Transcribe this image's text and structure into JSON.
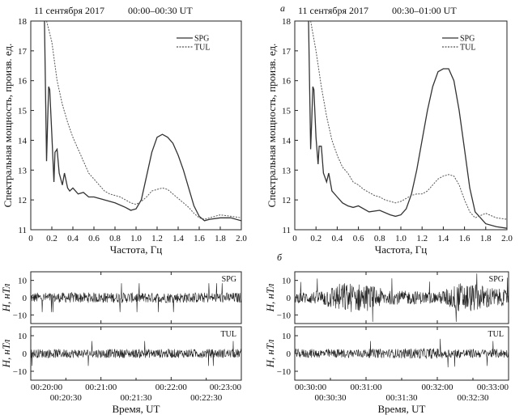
{
  "panel_labels": {
    "a": "а",
    "b": "б"
  },
  "chart_data": [
    {
      "type": "line",
      "date": "11 сентября 2017",
      "interval": "00:00–00:30 UT",
      "xlabel": "Частота, Гц",
      "ylabel": "Спектральная мощность, произв. ед.",
      "xlim": [
        0,
        2.0
      ],
      "ylim": [
        11,
        18
      ],
      "xticks": [
        "0",
        "0.2",
        "0.4",
        "0.6",
        "0.8",
        "1.0",
        "1.2",
        "1.4",
        "1.6",
        "1.8",
        "2.0"
      ],
      "yticks": [
        "11",
        "12",
        "13",
        "14",
        "15",
        "16",
        "17",
        "18"
      ],
      "legend_position": "top-right",
      "series": [
        {
          "name": "SPG",
          "style": "solid",
          "x": [
            0.13,
            0.15,
            0.16,
            0.17,
            0.18,
            0.2,
            0.22,
            0.23,
            0.25,
            0.27,
            0.3,
            0.32,
            0.35,
            0.37,
            0.4,
            0.45,
            0.5,
            0.55,
            0.6,
            0.7,
            0.8,
            0.9,
            0.95,
            1.0,
            1.05,
            1.1,
            1.15,
            1.2,
            1.25,
            1.3,
            1.35,
            1.4,
            1.45,
            1.5,
            1.55,
            1.6,
            1.65,
            1.7,
            1.8,
            1.9,
            2.0
          ],
          "y": [
            18,
            13.3,
            14.6,
            15.8,
            15.7,
            14.2,
            12.6,
            13.6,
            13.7,
            12.9,
            12.5,
            12.9,
            12.4,
            12.3,
            12.4,
            12.2,
            12.25,
            12.1,
            12.1,
            12.0,
            11.9,
            11.75,
            11.65,
            11.7,
            12.0,
            12.8,
            13.6,
            14.1,
            14.2,
            14.1,
            13.9,
            13.5,
            13.0,
            12.4,
            11.8,
            11.45,
            11.3,
            11.35,
            11.4,
            11.4,
            11.3
          ]
        },
        {
          "name": "TUL",
          "style": "dashed",
          "x": [
            0.15,
            0.2,
            0.25,
            0.3,
            0.35,
            0.4,
            0.45,
            0.5,
            0.55,
            0.6,
            0.65,
            0.7,
            0.75,
            0.8,
            0.85,
            0.9,
            0.95,
            1.0,
            1.05,
            1.1,
            1.15,
            1.2,
            1.25,
            1.3,
            1.35,
            1.4,
            1.45,
            1.5,
            1.55,
            1.6,
            1.65,
            1.7,
            1.8,
            1.9,
            2.0
          ],
          "y": [
            18,
            17.3,
            16.0,
            15.2,
            14.6,
            14.1,
            13.7,
            13.3,
            12.9,
            12.7,
            12.5,
            12.3,
            12.2,
            12.15,
            12.1,
            12.0,
            11.9,
            11.85,
            11.95,
            12.1,
            12.3,
            12.35,
            12.4,
            12.35,
            12.2,
            12.05,
            11.9,
            11.75,
            11.55,
            11.4,
            11.35,
            11.4,
            11.5,
            11.45,
            11.4
          ]
        }
      ]
    },
    {
      "type": "line",
      "date": "11 сентября 2017",
      "interval": "00:30–01:00 UT",
      "xlabel": "Частота, Гц",
      "ylabel": "Спектральная мощность, произв. ед.",
      "xlim": [
        0,
        2.0
      ],
      "ylim": [
        11,
        18
      ],
      "xticks": [
        "0",
        "0.2",
        "0.4",
        "0.6",
        "0.8",
        "1.0",
        "1.2",
        "1.4",
        "1.6",
        "1.8",
        "2.0"
      ],
      "yticks": [
        "11",
        "12",
        "13",
        "14",
        "15",
        "16",
        "17",
        "18"
      ],
      "legend_position": "top-right",
      "series": [
        {
          "name": "SPG",
          "style": "solid",
          "x": [
            0.13,
            0.15,
            0.16,
            0.17,
            0.18,
            0.2,
            0.22,
            0.23,
            0.25,
            0.27,
            0.3,
            0.32,
            0.35,
            0.4,
            0.45,
            0.5,
            0.55,
            0.6,
            0.7,
            0.8,
            0.9,
            0.95,
            1.0,
            1.05,
            1.1,
            1.15,
            1.2,
            1.25,
            1.3,
            1.35,
            1.4,
            1.45,
            1.5,
            1.55,
            1.6,
            1.65,
            1.7,
            1.8,
            1.9,
            2.0
          ],
          "y": [
            18,
            13.7,
            14.7,
            15.8,
            15.7,
            14.1,
            13.2,
            13.8,
            13.8,
            12.9,
            12.6,
            12.9,
            12.3,
            12.1,
            11.9,
            11.8,
            11.75,
            11.8,
            11.6,
            11.65,
            11.5,
            11.45,
            11.5,
            11.7,
            12.2,
            13.0,
            14.0,
            15.0,
            15.8,
            16.3,
            16.4,
            16.4,
            16.0,
            15.0,
            13.7,
            12.4,
            11.6,
            11.2,
            11.1,
            11.05
          ]
        },
        {
          "name": "TUL",
          "style": "dashed",
          "x": [
            0.15,
            0.2,
            0.25,
            0.3,
            0.35,
            0.4,
            0.45,
            0.5,
            0.55,
            0.6,
            0.65,
            0.7,
            0.75,
            0.8,
            0.85,
            0.9,
            0.95,
            1.0,
            1.05,
            1.1,
            1.15,
            1.2,
            1.25,
            1.3,
            1.35,
            1.4,
            1.45,
            1.5,
            1.55,
            1.6,
            1.65,
            1.7,
            1.8,
            1.9,
            2.0
          ],
          "y": [
            18,
            17.0,
            15.8,
            14.8,
            14.0,
            13.5,
            13.1,
            12.9,
            12.6,
            12.5,
            12.35,
            12.25,
            12.15,
            12.1,
            12.0,
            11.95,
            11.9,
            11.95,
            12.05,
            12.15,
            12.2,
            12.2,
            12.3,
            12.5,
            12.7,
            12.8,
            12.85,
            12.8,
            12.5,
            12.0,
            11.6,
            11.4,
            11.55,
            11.4,
            11.35
          ]
        }
      ]
    },
    {
      "type": "line",
      "station": "SPG",
      "ylabel": "H, нТл",
      "ylim": [
        -15,
        15
      ],
      "yticks": [
        "10",
        "0",
        "−10"
      ],
      "xticks": [
        "00:20:00",
        "00:21:00",
        "00:22:00",
        "00:23:00"
      ],
      "xlabel": "",
      "amplitude_profile": [
        3,
        3,
        3,
        3,
        3,
        3,
        3,
        3,
        3,
        3
      ]
    },
    {
      "type": "line",
      "station": "TUL",
      "ylabel": "H, нТл",
      "ylim": [
        -15,
        15
      ],
      "yticks": [
        "10",
        "0",
        "−10"
      ],
      "xticks_major": [
        "00:20:00",
        "00:21:00",
        "00:22:00",
        "00:23:00"
      ],
      "xticks_minor": [
        "00:20:30",
        "00:21:30",
        "00:22:30"
      ],
      "xlabel": "Время, UT",
      "amplitude_profile": [
        2.5,
        2.5,
        2.5,
        2.5,
        2.5,
        2.5,
        2.5,
        2.5,
        2.5,
        2.5
      ]
    },
    {
      "type": "line",
      "station": "SPG",
      "ylabel": "H, нТл",
      "ylim": [
        -15,
        15
      ],
      "yticks": [
        "10",
        "0",
        "−10"
      ],
      "xticks": [
        "00:30:00",
        "00:31:00",
        "00:32:00",
        "00:33:00"
      ],
      "xlabel": "",
      "amplitude_profile": [
        3,
        4,
        9,
        8,
        4,
        4,
        3,
        9,
        7,
        4
      ]
    },
    {
      "type": "line",
      "station": "TUL",
      "ylabel": "H, нТл",
      "ylim": [
        -15,
        15
      ],
      "yticks": [
        "10",
        "0",
        "−10"
      ],
      "xticks_major": [
        "00:30:00",
        "00:31:00",
        "00:32:00",
        "00:33:00"
      ],
      "xticks_minor": [
        "00:30:30",
        "00:31:30",
        "00:32:30"
      ],
      "xlabel": "Время, UT",
      "amplitude_profile": [
        2.5,
        2.5,
        2.5,
        2.5,
        2.5,
        3,
        3,
        2.5,
        2.5,
        2.5
      ]
    }
  ]
}
